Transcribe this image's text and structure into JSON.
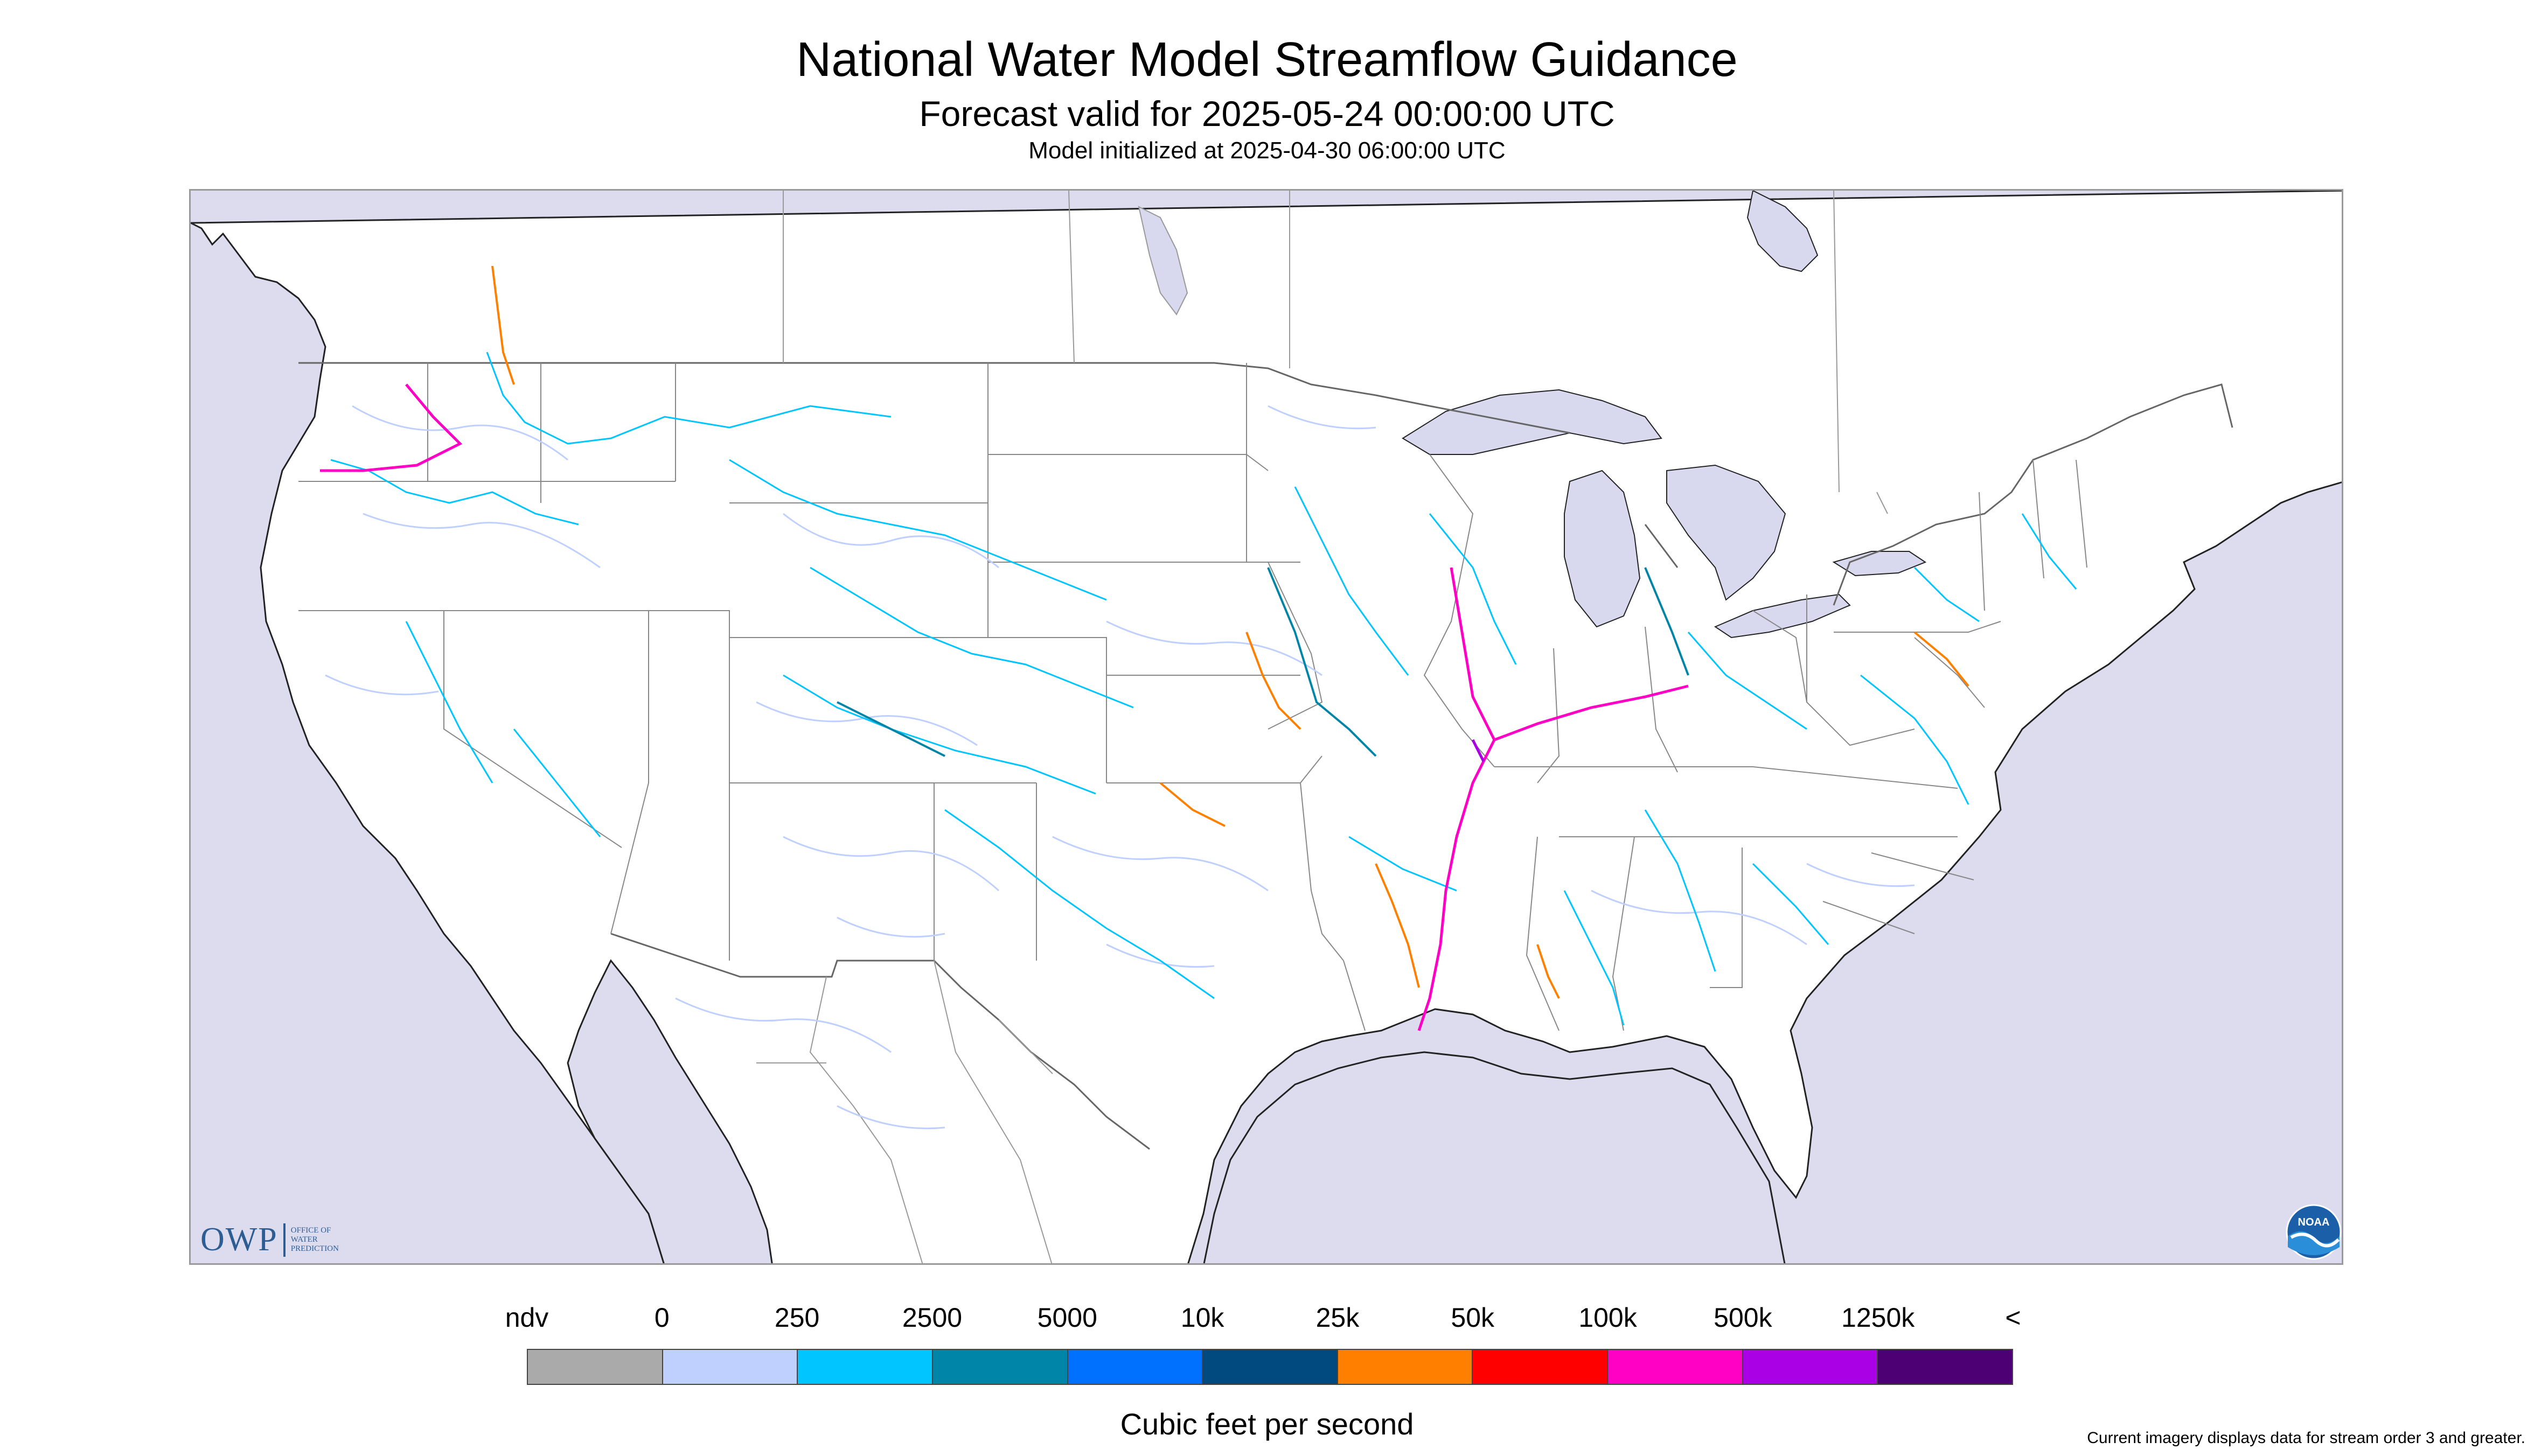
{
  "header": {
    "title": "National Water Model Streamflow Guidance",
    "subtitle": "Forecast valid for 2025-05-24 00:00:00 UTC",
    "init": "Model initialized at 2025-04-30 06:00:00 UTC"
  },
  "logos": {
    "owp_letters": "OWP",
    "owp_sub": "OFFICE OF WATER PREDICTION",
    "noaa_text": "NOAA"
  },
  "legend": {
    "labels": [
      "ndv",
      "0",
      "250",
      "2500",
      "5000",
      "10k",
      "25k",
      "50k",
      "100k",
      "500k",
      "1250k",
      "<"
    ],
    "colors": [
      "#aaaaaa",
      "#bfd0ff",
      "#00c5ff",
      "#0084a8",
      "#0070ff",
      "#004a80",
      "#ff8000",
      "#ff0000",
      "#ff00c5",
      "#a900e6",
      "#4c0073"
    ],
    "units": "Cubic feet per second"
  },
  "footnote": "Current imagery displays data for stream order 3 and greater.",
  "colors": {
    "ocean": "#dcdcee",
    "land": "#ffffff",
    "lake": "#d8d8ee",
    "boundary": "#777777",
    "coast": "#222222"
  }
}
